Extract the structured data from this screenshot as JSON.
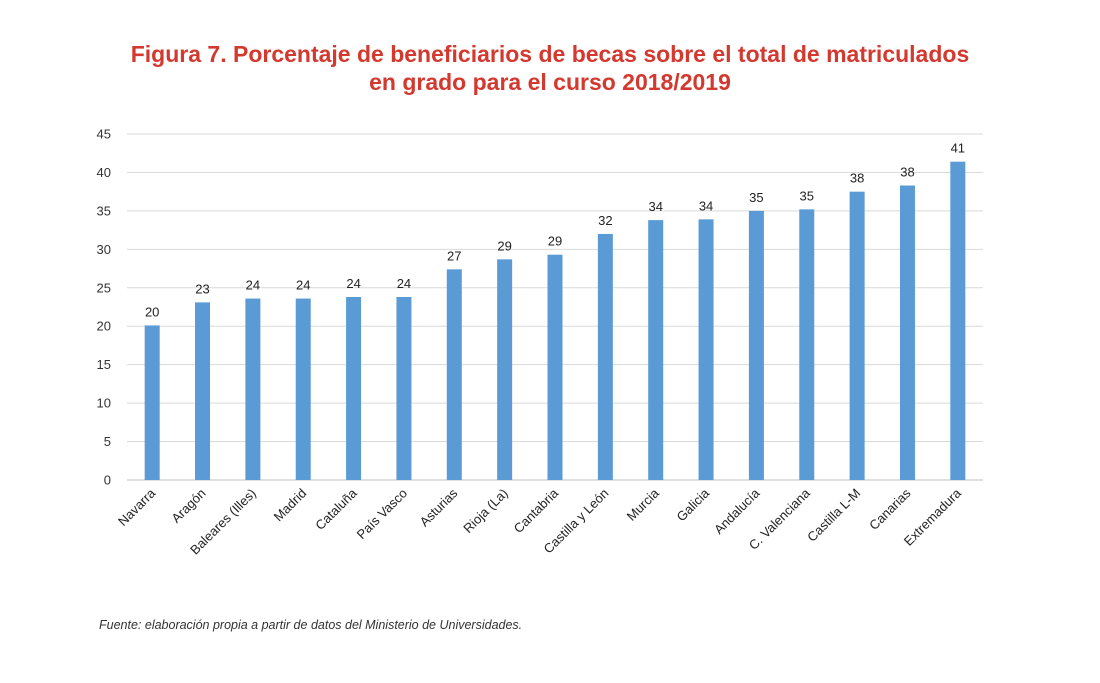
{
  "title": {
    "line1": "Figura 7. Porcentaje de beneficiarios de becas sobre el total de matriculados",
    "line2": "en grado para el curso 2018/2019"
  },
  "source": "Fuente: elaboración propia a partir de datos del Ministerio de Universidades.",
  "colors": {
    "bar": "#5b9bd5",
    "title": "#d3392f",
    "grid": "#d9d9d9"
  },
  "chart_data": {
    "type": "bar",
    "title": "Figura 7. Porcentaje de beneficiarios de becas sobre el total de matriculados en grado para el curso 2018/2019",
    "xlabel": "",
    "ylabel": "",
    "ylim": [
      0,
      45
    ],
    "yticks": [
      0,
      5,
      10,
      15,
      20,
      25,
      30,
      35,
      40,
      45
    ],
    "grid": true,
    "legend": "none",
    "categories": [
      "Navarra",
      "Aragón",
      "Baleares (Illes)",
      "Madrid",
      "Cataluña",
      "País Vasco",
      "Asturias",
      "Rioja (La)",
      "Cantabria",
      "Castilla y León",
      "Murcia",
      "Galicia",
      "Andalucía",
      "C. Valenciana",
      "Castilla L-M",
      "Canarias",
      "Extremadura"
    ],
    "values": [
      20.1,
      23.1,
      23.6,
      23.6,
      23.8,
      23.8,
      27.4,
      28.7,
      29.3,
      32.0,
      33.8,
      33.9,
      35.0,
      35.2,
      37.5,
      38.3,
      41.4
    ],
    "data_labels": [
      "20",
      "23",
      "24",
      "24",
      "24",
      "24",
      "27",
      "29",
      "29",
      "32",
      "34",
      "34",
      "35",
      "35",
      "38",
      "38",
      "41"
    ]
  }
}
